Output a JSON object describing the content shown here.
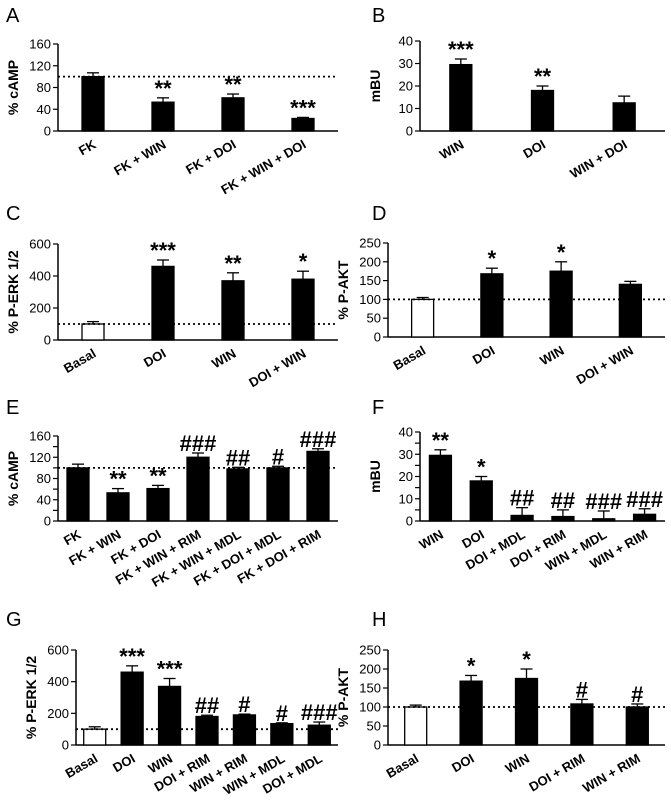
{
  "colors": {
    "filled": "#000000",
    "open": "#ffffff",
    "baseline": "#000000"
  },
  "chart_data": [
    {
      "panel": "A",
      "type": "bar",
      "ylabel": "% cAMP",
      "ylim": [
        0,
        160
      ],
      "yticks": [
        0,
        40,
        80,
        120,
        160
      ],
      "baseline": 100,
      "baseline_style": "dotted",
      "xlabel_rotate": true,
      "categories": [
        "FK",
        "FK + WIN",
        "FK + DOI",
        "FK + WIN + DOI"
      ],
      "values": [
        100,
        53,
        61,
        23
      ],
      "errors": [
        7,
        8,
        7,
        2
      ],
      "fills": [
        "filled",
        "filled",
        "filled",
        "filled"
      ],
      "annotations": [
        "",
        "**",
        "**",
        "***"
      ]
    },
    {
      "panel": "B",
      "type": "bar",
      "ylabel": "mBU",
      "ylim": [
        0,
        40
      ],
      "yticks": [
        0,
        10,
        20,
        30,
        40
      ],
      "baseline": null,
      "xlabel_rotate": true,
      "categories": [
        "WIN",
        "DOI",
        "WIN + DOI"
      ],
      "values": [
        29.5,
        18,
        12.5
      ],
      "errors": [
        2.5,
        2,
        3
      ],
      "fills": [
        "filled",
        "filled",
        "filled"
      ],
      "annotations": [
        "***",
        "**",
        ""
      ]
    },
    {
      "panel": "C",
      "type": "bar",
      "ylabel": "% P-ERK 1/2",
      "ylim": [
        0,
        600
      ],
      "yticks": [
        0,
        200,
        400,
        600
      ],
      "baseline": 100,
      "baseline_style": "dotted",
      "xlabel_rotate": true,
      "categories": [
        "Basal",
        "DOI",
        "WIN",
        "DOI + WIN"
      ],
      "values": [
        100,
        460,
        370,
        380
      ],
      "errors": [
        15,
        40,
        50,
        50
      ],
      "fills": [
        "open",
        "filled",
        "filled",
        "filled"
      ],
      "annotations": [
        "",
        "***",
        "**",
        "*"
      ]
    },
    {
      "panel": "D",
      "type": "bar",
      "ylabel": "% P-AKT",
      "ylim": [
        0,
        250
      ],
      "yticks": [
        0,
        50,
        100,
        150,
        200,
        250
      ],
      "baseline": 100,
      "baseline_style": "dotted",
      "xlabel_rotate": true,
      "categories": [
        "Basal",
        "DOI",
        "WIN",
        "DOI + WIN"
      ],
      "values": [
        100,
        168,
        175,
        140
      ],
      "errors": [
        5,
        15,
        25,
        8
      ],
      "fills": [
        "open",
        "filled",
        "filled",
        "filled"
      ],
      "annotations": [
        "",
        "*",
        "*",
        ""
      ]
    },
    {
      "panel": "E",
      "type": "bar",
      "ylabel": "% cAMP",
      "ylim": [
        0,
        160
      ],
      "yticks": [
        0,
        20,
        40,
        60,
        80,
        100,
        120,
        140,
        160
      ],
      "ytick_labels": [
        "0",
        "",
        "40",
        "",
        "80",
        "",
        "120",
        "",
        "160"
      ],
      "baseline": 100,
      "baseline_style": "dotted",
      "xlabel_rotate": true,
      "categories": [
        "FK",
        "FK + WIN",
        "FK + DOI",
        "FK + WIN + RIM",
        "FK + WIN + MDL",
        "FK + DOI + MDL",
        "FK + DOI + RIM"
      ],
      "values": [
        100,
        53,
        61,
        120,
        98,
        100,
        131
      ],
      "errors": [
        7,
        8,
        6,
        8,
        3,
        3,
        5
      ],
      "fills": [
        "filled",
        "filled",
        "filled",
        "filled",
        "filled",
        "filled",
        "filled"
      ],
      "annotations": [
        "",
        "**",
        "**",
        "###",
        "##",
        "#",
        "###"
      ]
    },
    {
      "panel": "F",
      "type": "bar",
      "ylabel": "mBU",
      "ylim": [
        0,
        40
      ],
      "yticks": [
        0,
        5,
        10,
        15,
        20,
        25,
        30,
        35,
        40
      ],
      "ytick_labels": [
        "0",
        "",
        "10",
        "",
        "20",
        "",
        "30",
        "",
        "40"
      ],
      "baseline": null,
      "xlabel_rotate": true,
      "categories": [
        "WIN",
        "DOI",
        "DOI + MDL",
        "DOI + RIM",
        "WIN + MDL",
        "WIN + RIM"
      ],
      "values": [
        29.5,
        18,
        2.5,
        2,
        1,
        3
      ],
      "errors": [
        2.5,
        2,
        3.5,
        3,
        3.5,
        2.5
      ],
      "fills": [
        "filled",
        "filled",
        "filled",
        "filled",
        "filled",
        "filled"
      ],
      "annotations": [
        "**",
        "*",
        "##",
        "##",
        "###",
        "###"
      ]
    },
    {
      "panel": "G",
      "type": "bar",
      "ylabel": "% P-ERK 1/2",
      "ylim": [
        0,
        600
      ],
      "yticks": [
        0,
        200,
        400,
        600
      ],
      "baseline": 100,
      "baseline_style": "dotted",
      "xlabel_rotate": true,
      "categories": [
        "Basal",
        "DOI",
        "WIN",
        "DOI + RIM",
        "WIN + RIM",
        "WIN + MDL",
        "DOI + MDL"
      ],
      "values": [
        100,
        460,
        370,
        180,
        190,
        135,
        125
      ],
      "errors": [
        15,
        40,
        50,
        8,
        5,
        5,
        20
      ],
      "fills": [
        "open",
        "filled",
        "filled",
        "filled",
        "filled",
        "filled",
        "filled"
      ],
      "annotations": [
        "",
        "***",
        "***",
        "##",
        "#",
        "#",
        "###"
      ]
    },
    {
      "panel": "H",
      "type": "bar",
      "ylabel": "% P-AKT",
      "ylim": [
        0,
        250
      ],
      "yticks": [
        0,
        50,
        100,
        150,
        200,
        250
      ],
      "baseline": 100,
      "baseline_style": "dotted",
      "xlabel_rotate": true,
      "categories": [
        "Basal",
        "DOI",
        "WIN",
        "DOI + RIM",
        "WIN + RIM"
      ],
      "values": [
        100,
        168,
        175,
        108,
        100
      ],
      "errors": [
        5,
        15,
        25,
        12,
        8
      ],
      "fills": [
        "open",
        "filled",
        "filled",
        "filled",
        "filled"
      ],
      "annotations": [
        "",
        "*",
        "*",
        "#",
        "#"
      ]
    }
  ]
}
